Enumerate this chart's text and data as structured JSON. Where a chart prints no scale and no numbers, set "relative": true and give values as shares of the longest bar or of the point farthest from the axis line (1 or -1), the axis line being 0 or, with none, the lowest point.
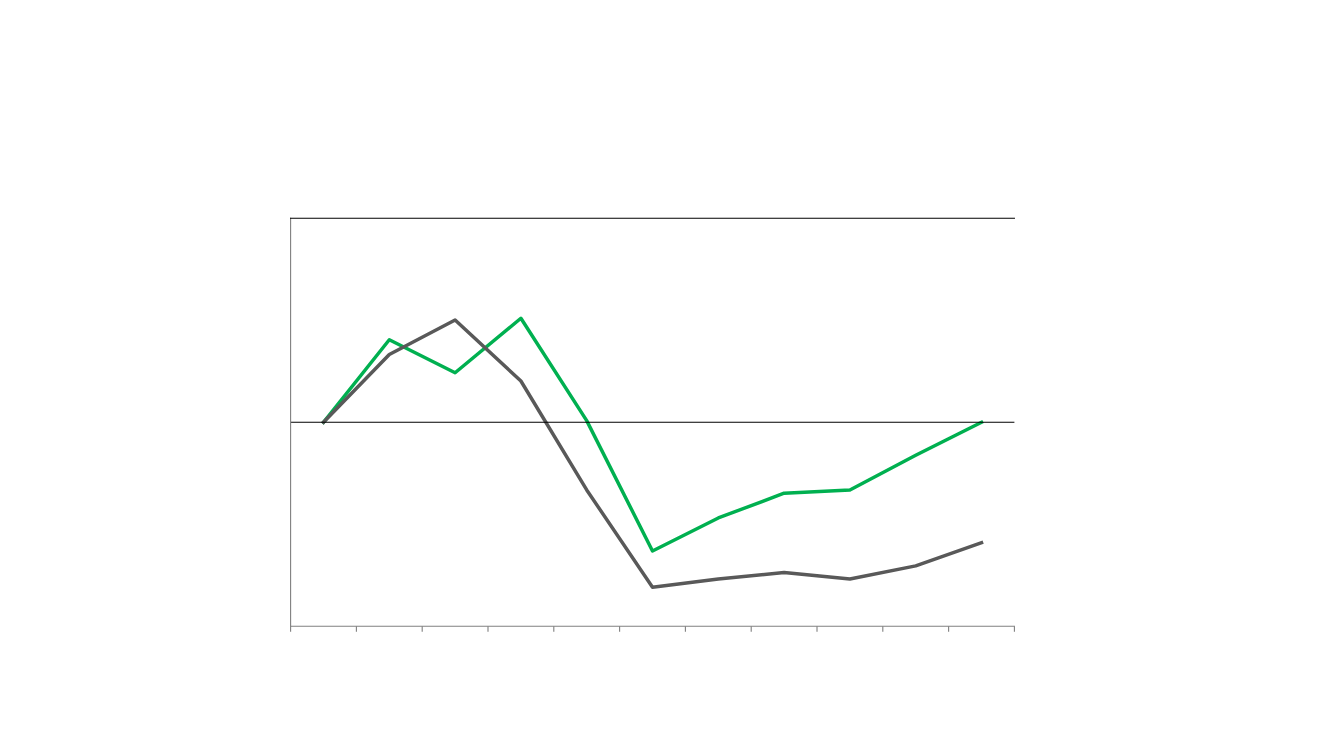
{
  "chart_data": {
    "type": "line",
    "relative": true,
    "tick_labels": false,
    "grid": false,
    "legend": false,
    "categories": [
      null,
      null,
      null,
      null,
      null,
      null,
      null,
      null,
      null,
      null,
      null
    ],
    "series": [
      {
        "color": "#00b050",
        "values": [
          0,
          0.5,
          0.3,
          0.63,
          0.01,
          -0.78,
          -0.58,
          -0.43,
          -0.41,
          -0.2,
          0
        ]
      },
      {
        "color": "#595959",
        "values": [
          0,
          0.41,
          0.62,
          0.25,
          -0.41,
          -1,
          -0.95,
          -0.91,
          -0.95,
          -0.87,
          -0.73
        ]
      }
    ]
  }
}
